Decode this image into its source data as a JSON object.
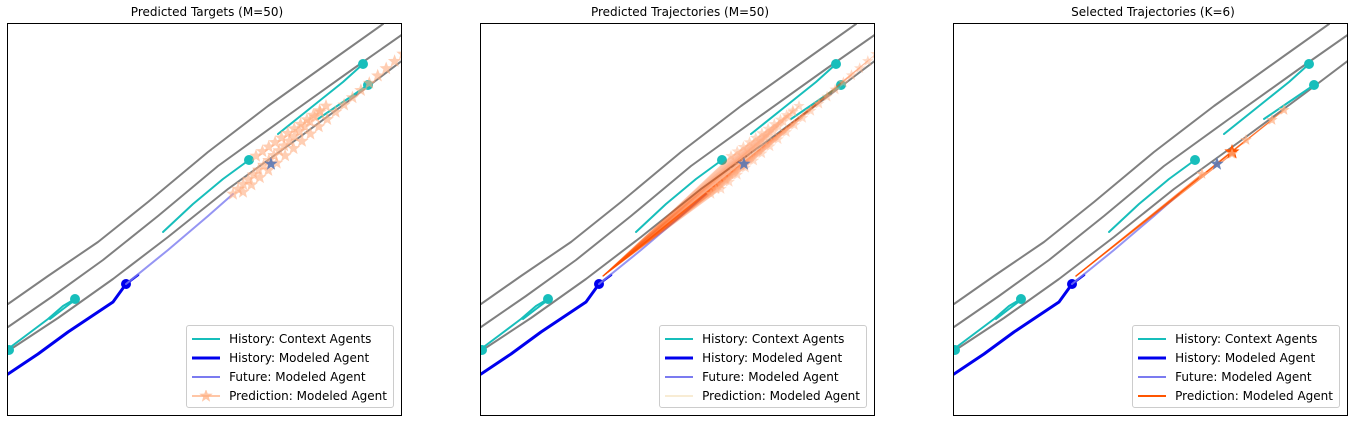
{
  "panels": [
    {
      "title": "Predicted Targets (M=50)",
      "legend": [
        {
          "label": "History: Context Agents",
          "style": "context"
        },
        {
          "label": "History: Modeled Agent",
          "style": "modeled"
        },
        {
          "label": "Future: Modeled Agent",
          "style": "future"
        },
        {
          "label": "Prediction: Modeled Agent",
          "style": "pred-star"
        }
      ]
    },
    {
      "title": "Predicted Trajectories (M=50)",
      "legend": [
        {
          "label": "History: Context Agents",
          "style": "context"
        },
        {
          "label": "History: Modeled Agent",
          "style": "modeled"
        },
        {
          "label": "Future: Modeled Agent",
          "style": "future"
        },
        {
          "label": "Prediction: Modeled Agent",
          "style": "pred-thin"
        }
      ]
    },
    {
      "title": "Selected Trajectories (K=6)",
      "legend": [
        {
          "label": "History: Context Agents",
          "style": "context"
        },
        {
          "label": "History: Modeled Agent",
          "style": "modeled"
        },
        {
          "label": "Future: Modeled Agent",
          "style": "future"
        },
        {
          "label": "Prediction: Modeled Agent",
          "style": "pred-orange"
        }
      ]
    }
  ],
  "colors": {
    "lane": "#808080",
    "context": "#17bebb",
    "modeled": "#0000ee",
    "future": "#7b7bf0",
    "prediction_light": "#ffae80",
    "prediction_strong": "#ff5500",
    "modeled_target": "#5a77b2"
  },
  "chart_data": [
    {
      "type": "trajectory-map",
      "title": "Predicted Targets (M=50)",
      "xlabel": "",
      "ylabel": "",
      "axes_visible": false,
      "legend_position": "lower-right",
      "series": [
        {
          "name": "History: Context Agents",
          "marker": "circle"
        },
        {
          "name": "History: Modeled Agent",
          "marker": "circle"
        },
        {
          "name": "Future: Modeled Agent",
          "marker": "none"
        },
        {
          "name": "Prediction: Modeled Agent",
          "marker": "star",
          "count": 50
        }
      ]
    },
    {
      "type": "trajectory-map",
      "title": "Predicted Trajectories (M=50)",
      "xlabel": "",
      "ylabel": "",
      "axes_visible": false,
      "legend_position": "lower-right",
      "series": [
        {
          "name": "History: Context Agents",
          "marker": "circle"
        },
        {
          "name": "History: Modeled Agent",
          "marker": "circle"
        },
        {
          "name": "Future: Modeled Agent",
          "marker": "none"
        },
        {
          "name": "Prediction: Modeled Agent",
          "marker": "star",
          "count": 50
        }
      ]
    },
    {
      "type": "trajectory-map",
      "title": "Selected Trajectories (K=6)",
      "xlabel": "",
      "ylabel": "",
      "axes_visible": false,
      "legend_position": "lower-right",
      "series": [
        {
          "name": "History: Context Agents",
          "marker": "circle"
        },
        {
          "name": "History: Modeled Agent",
          "marker": "circle"
        },
        {
          "name": "Future: Modeled Agent",
          "marker": "none"
        },
        {
          "name": "Prediction: Modeled Agent",
          "marker": "star",
          "count": 6
        }
      ]
    }
  ]
}
